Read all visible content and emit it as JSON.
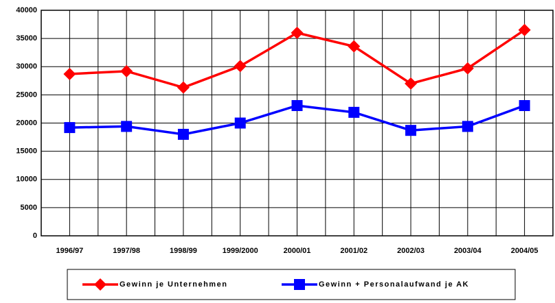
{
  "chart_data": {
    "type": "line",
    "categories": [
      "1996/97",
      "1997/98",
      "1998/99",
      "1999/2000",
      "2000/01",
      "2001/02",
      "2002/03",
      "2003/04",
      "2004/05"
    ],
    "series": [
      {
        "name": "Gewinn je Unternehmen",
        "color": "#ff0000",
        "marker": "diamond",
        "values": [
          28700,
          29200,
          26300,
          30100,
          36000,
          33600,
          27000,
          29700,
          36500
        ]
      },
      {
        "name": "Gewinn + Personalaufwand je AK",
        "color": "#0000ff",
        "marker": "square",
        "values": [
          19200,
          19400,
          18000,
          20000,
          23100,
          21900,
          18700,
          19400,
          23100
        ]
      }
    ],
    "ylim": [
      0,
      40000
    ],
    "yticks": [
      0,
      5000,
      10000,
      15000,
      20000,
      25000,
      30000,
      35000,
      40000
    ],
    "grid": true
  }
}
